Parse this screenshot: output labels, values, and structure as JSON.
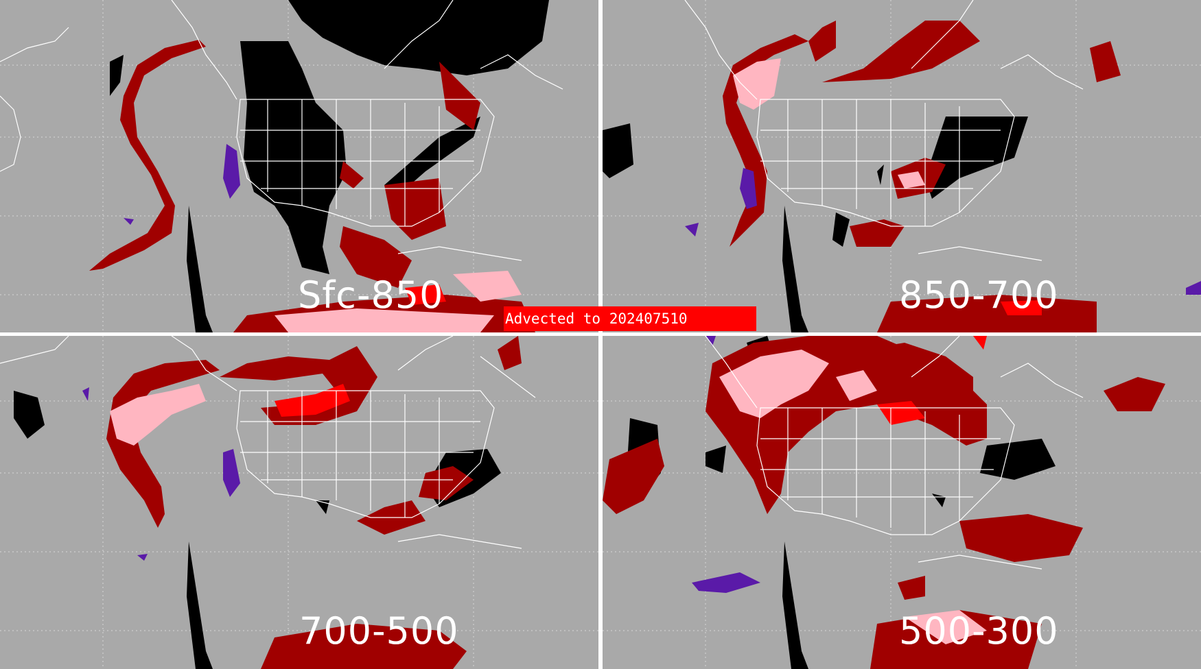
{
  "banner": {
    "text": "Advected to  202407510"
  },
  "panels": [
    {
      "label": "Sfc-850"
    },
    {
      "label": "850-700"
    },
    {
      "label": "700-500"
    },
    {
      "label": "500-300"
    }
  ],
  "colors": {
    "background": "#a9a9a9",
    "land_mask": "#000000",
    "dark_red": "#a00000",
    "red": "#ff0000",
    "pink": "#ffb6c1",
    "purple": "#5a1aa8",
    "borders": "#ffffff",
    "graticule": "#d8d8d8"
  }
}
